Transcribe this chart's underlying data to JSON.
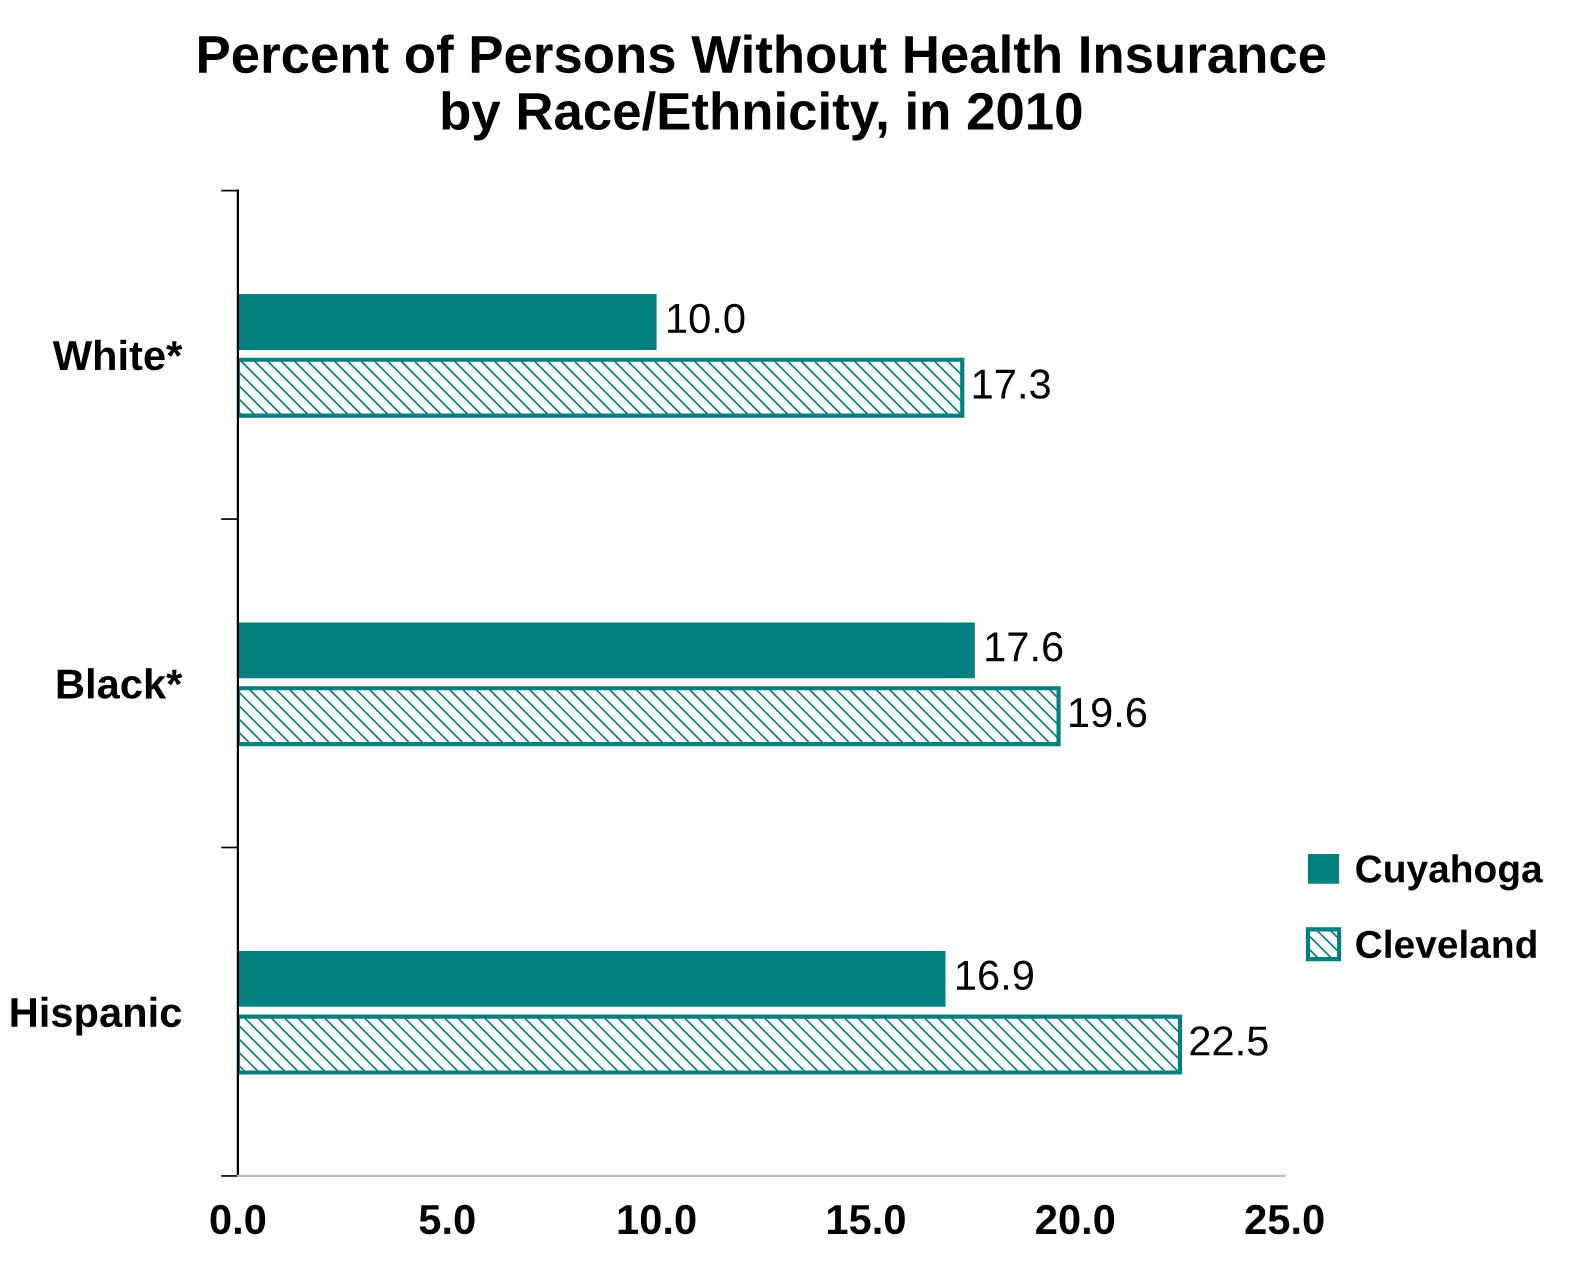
{
  "chart_data": {
    "type": "bar",
    "orientation": "horizontal",
    "title": "Percent of Persons Without Health Insurance\nby Race/Ethnicity, in 2010",
    "categories": [
      "White*",
      "Black*",
      "Hispanic"
    ],
    "series": [
      {
        "name": "Cuyahoga",
        "color": "#008080",
        "values": [
          10.0,
          17.6,
          16.9
        ],
        "value_labels": [
          "10.0",
          "17.6",
          "16.9"
        ]
      },
      {
        "name": "Cleveland",
        "color": "#008080",
        "values": [
          17.3,
          19.6,
          22.5
        ],
        "value_labels": [
          "17.3",
          "19.6",
          "22.5"
        ]
      }
    ],
    "xlim": [
      0,
      25
    ],
    "xticks": [
      {
        "value": 0,
        "label": "0.0"
      },
      {
        "value": 5,
        "label": "5.0"
      },
      {
        "value": 10,
        "label": "10.0"
      },
      {
        "value": 15,
        "label": "15.0"
      },
      {
        "value": 20,
        "label": "20.0"
      },
      {
        "value": 25,
        "label": "25.0"
      }
    ],
    "legend": "right",
    "grid": false
  }
}
